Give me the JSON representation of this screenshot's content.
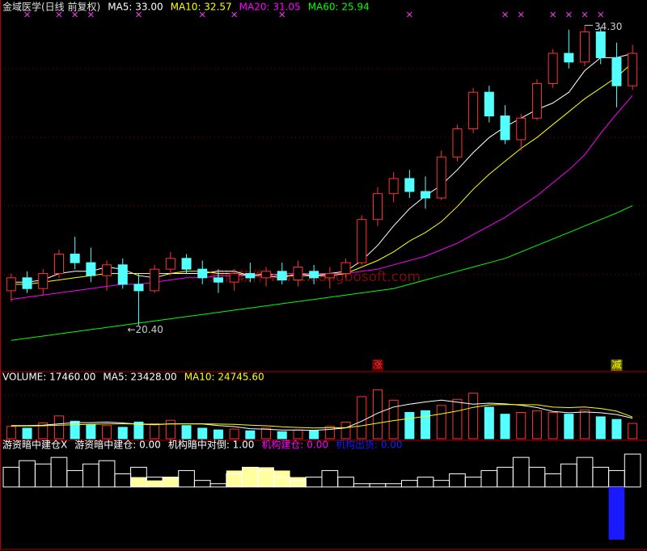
{
  "chart_data": [
    {
      "type": "candlestick",
      "title": "金域医学(日线 前复权)",
      "open": [
        22.0,
        22.6,
        22.1,
        22.8,
        23.7,
        23.3,
        22.7,
        23.2,
        22.3,
        22.0,
        23.0,
        23.5,
        23.0,
        22.6,
        22.4,
        22.8,
        22.6,
        22.9,
        22.5,
        22.9,
        22.6,
        22.8,
        23.3,
        25.3,
        26.5,
        27.2,
        26.6,
        26.3,
        28.2,
        29.5,
        31.2,
        30.1,
        29.0,
        30.0,
        31.6,
        33.0,
        32.6,
        34.0,
        32.8,
        31.5
      ],
      "high": [
        22.8,
        22.9,
        23.0,
        23.9,
        24.5,
        24.0,
        23.4,
        23.5,
        22.8,
        23.2,
        23.8,
        23.7,
        23.4,
        23.0,
        23.0,
        23.3,
        23.1,
        23.3,
        23.4,
        23.2,
        23.1,
        23.5,
        25.5,
        26.8,
        27.5,
        27.6,
        27.3,
        28.5,
        29.7,
        31.4,
        31.5,
        30.6,
        30.2,
        31.8,
        33.2,
        34.1,
        34.3,
        34.2,
        33.5,
        33.4
      ],
      "low": [
        21.5,
        21.9,
        21.8,
        22.6,
        23.0,
        22.4,
        22.0,
        22.1,
        20.4,
        21.9,
        22.7,
        22.8,
        22.3,
        21.9,
        22.0,
        22.4,
        22.2,
        22.3,
        22.2,
        22.3,
        22.1,
        22.6,
        23.2,
        25.0,
        26.1,
        26.3,
        25.8,
        26.2,
        28.0,
        29.3,
        29.8,
        28.8,
        28.5,
        29.9,
        31.4,
        32.3,
        32.4,
        32.5,
        30.5,
        31.3
      ],
      "close": [
        22.6,
        22.1,
        22.8,
        23.7,
        23.3,
        22.7,
        23.2,
        22.3,
        22.0,
        23.0,
        23.5,
        23.0,
        22.6,
        22.4,
        22.8,
        22.6,
        22.9,
        22.5,
        23.1,
        22.6,
        22.8,
        23.3,
        25.3,
        26.5,
        27.2,
        26.6,
        26.3,
        28.2,
        29.5,
        31.2,
        30.1,
        29.0,
        30.0,
        31.6,
        33.0,
        32.6,
        34.0,
        32.8,
        31.5,
        33.0
      ],
      "up_color": "#ff3232",
      "down_color": "#54ffff",
      "series": [
        {
          "name": "MA5: 33.00",
          "color": "#ffffff",
          "values": [
            22.4,
            22.4,
            22.5,
            22.8,
            22.9,
            22.9,
            23.1,
            23.0,
            22.7,
            22.6,
            22.8,
            22.8,
            22.8,
            22.9,
            22.9,
            22.7,
            22.7,
            22.6,
            22.8,
            22.7,
            22.8,
            22.9,
            23.4,
            24.1,
            25.0,
            25.8,
            26.4,
            26.9,
            27.6,
            28.4,
            29.1,
            29.6,
            30.0,
            30.4,
            30.7,
            31.2,
            32.2,
            32.8,
            32.8,
            33.0
          ]
        },
        {
          "name": "MA10: 32.57",
          "color": "#ffff00",
          "values": [
            22.3,
            22.3,
            22.4,
            22.5,
            22.6,
            22.7,
            22.8,
            22.8,
            22.8,
            22.8,
            22.8,
            22.9,
            22.9,
            22.8,
            22.8,
            22.7,
            22.8,
            22.7,
            22.7,
            22.7,
            22.7,
            22.8,
            23.1,
            23.4,
            23.8,
            24.3,
            24.7,
            25.2,
            25.9,
            26.7,
            27.4,
            28.0,
            28.6,
            29.1,
            29.7,
            30.3,
            30.9,
            31.4,
            31.9,
            32.57
          ]
        },
        {
          "name": "MA20: 31.05",
          "color": "#ff00ff",
          "values": [
            21.6,
            21.7,
            21.8,
            21.9,
            22.0,
            22.1,
            22.2,
            22.3,
            22.3,
            22.4,
            22.5,
            22.6,
            22.6,
            22.7,
            22.7,
            22.7,
            22.7,
            22.8,
            22.8,
            22.8,
            22.8,
            22.8,
            22.9,
            23.0,
            23.2,
            23.4,
            23.6,
            23.9,
            24.2,
            24.6,
            25.0,
            25.4,
            25.9,
            26.4,
            27.0,
            27.6,
            28.3,
            29.3,
            30.2,
            31.05
          ]
        },
        {
          "name": "MA60: 25.94",
          "color": "#00ff00",
          "values": [
            19.7,
            19.8,
            19.9,
            20.0,
            20.1,
            20.2,
            20.3,
            20.4,
            20.5,
            20.6,
            20.7,
            20.8,
            20.9,
            21.0,
            21.1,
            21.2,
            21.3,
            21.4,
            21.5,
            21.6,
            21.7,
            21.8,
            21.9,
            22.0,
            22.1,
            22.3,
            22.5,
            22.7,
            22.9,
            23.1,
            23.3,
            23.5,
            23.8,
            24.1,
            24.4,
            24.7,
            25.0,
            25.3,
            25.6,
            25.94
          ]
        }
      ],
      "ylim": [
        19.0,
        34.8
      ],
      "annotations": [
        {
          "text": "34.30"
        },
        {
          "text": "←20.40"
        },
        {
          "text": "涨",
          "color": "#ff3030"
        },
        {
          "text": "减",
          "color": "#ffff00"
        }
      ],
      "watermark": "翔博软件 www.xiangbosoft.com"
    },
    {
      "type": "volume",
      "title": "VOLUME: 17460.00",
      "values": [
        14000,
        12000,
        18000,
        26000,
        20000,
        16000,
        15000,
        13000,
        19000,
        17000,
        21000,
        15000,
        12000,
        10000,
        11000,
        9000,
        12000,
        8000,
        10000,
        9000,
        14000,
        19000,
        48000,
        56000,
        44000,
        30000,
        32000,
        38000,
        45000,
        52000,
        36000,
        28000,
        30000,
        32000,
        30000,
        28000,
        33000,
        25000,
        22000,
        17460
      ],
      "series": [
        {
          "name": "MA5: 23428.00",
          "color": "#ffffff",
          "values": [
            15000,
            15000,
            15500,
            17000,
            18400,
            18400,
            19000,
            18000,
            16600,
            16000,
            17000,
            17000,
            16800,
            15000,
            13800,
            11400,
            10800,
            10000,
            10000,
            9600,
            10600,
            12400,
            20000,
            29200,
            36200,
            39400,
            42000,
            44000,
            41800,
            39400,
            40600,
            39800,
            38200,
            35600,
            31200,
            29600,
            30600,
            29600,
            27600,
            23428
          ]
        },
        {
          "name": "MA10: 24745.60",
          "color": "#ffff00",
          "values": [
            14500,
            14600,
            14800,
            15400,
            16000,
            16500,
            17000,
            17000,
            16800,
            16500,
            16900,
            17000,
            17100,
            16700,
            16300,
            15500,
            14800,
            13600,
            12800,
            12300,
            12600,
            12600,
            14800,
            17700,
            20700,
            23100,
            25500,
            28300,
            31600,
            35800,
            38700,
            39100,
            38900,
            38800,
            36100,
            35500,
            36300,
            34500,
            31500,
            24745.6
          ]
        }
      ],
      "ylim": [
        0,
        60000
      ]
    },
    {
      "type": "indicator",
      "title": "游资暗中建仓X",
      "series": [
        {
          "name": "游资暗中建仓: 0.00",
          "color": "#ffffa0",
          "style": "fill",
          "values": [
            0,
            0,
            0,
            0,
            0,
            0,
            0,
            0,
            0.3,
            0.2,
            0.3,
            0,
            0,
            0,
            0.5,
            0.6,
            0.6,
            0.5,
            0.3,
            0,
            0,
            0,
            0,
            0,
            0,
            0,
            0,
            0,
            0,
            0,
            0,
            0,
            0,
            0,
            0,
            0,
            0,
            0,
            0,
            0
          ]
        },
        {
          "name": "机构暗中对倒: 1.00",
          "color": "#ffffff",
          "style": "outline",
          "values": [
            0.6,
            0.8,
            0.7,
            0.9,
            0.5,
            0.7,
            0.8,
            0.4,
            0.6,
            0.3,
            0.3,
            0.5,
            0.2,
            0.1,
            0.4,
            0.6,
            0.5,
            0.3,
            0.2,
            0.3,
            0.5,
            0.3,
            0.1,
            0.1,
            0.1,
            0.2,
            0.3,
            0.2,
            0.4,
            0.3,
            0.5,
            0.6,
            0.9,
            0.6,
            0.4,
            0.7,
            0.9,
            0.6,
            0.5,
            1.0
          ]
        },
        {
          "name": "机构建仓: 0.00",
          "color": "#ff00ff",
          "style": "fill",
          "values": [
            0,
            0,
            0,
            0,
            0,
            0,
            0,
            0,
            0,
            0,
            0,
            0,
            0,
            0,
            0,
            0,
            0,
            0,
            0,
            0,
            0,
            0,
            0,
            0,
            0,
            0,
            0,
            0,
            0,
            0,
            0,
            0,
            0,
            0,
            0,
            0,
            0,
            0,
            0,
            0
          ]
        },
        {
          "name": "机构出货: 0.00",
          "color": "#1a1aff",
          "style": "fill",
          "values": [
            0,
            0,
            0,
            0,
            0,
            0,
            0,
            0,
            0,
            0,
            0,
            0,
            0,
            0,
            0,
            0,
            0,
            0,
            0,
            0,
            0,
            0,
            0,
            0,
            0,
            0,
            0,
            0,
            0,
            0,
            0,
            0,
            0,
            0,
            0,
            0,
            0,
            0,
            -1.6,
            0
          ]
        }
      ],
      "ylim": [
        -1.7,
        1.1
      ]
    }
  ]
}
